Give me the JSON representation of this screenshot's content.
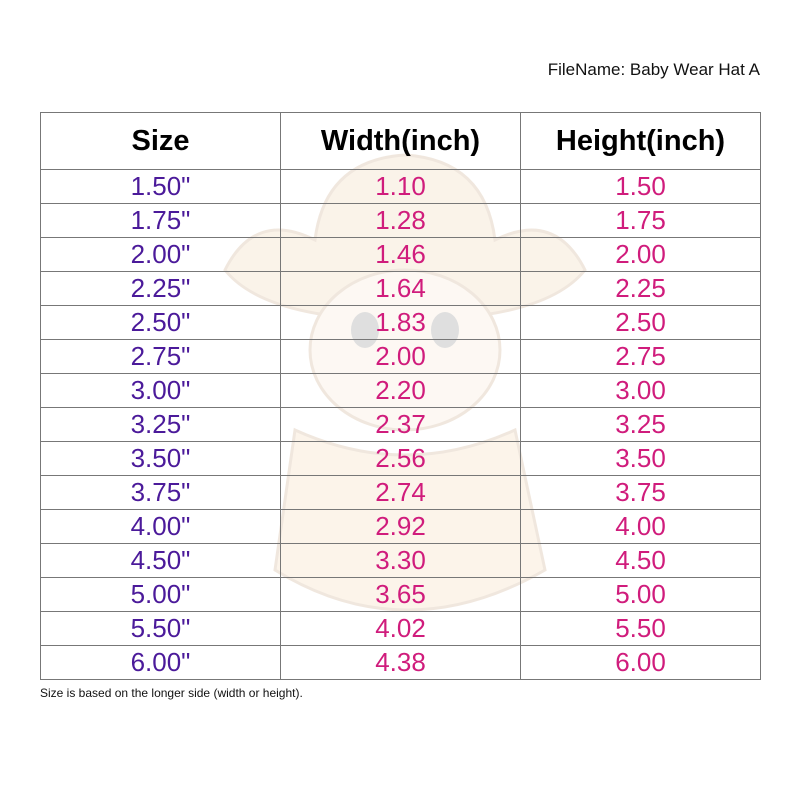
{
  "filename": "FileName: Baby Wear Hat A",
  "colors": {
    "size": "#4b1a9a",
    "values": "#d01c7c"
  },
  "watermark_icon": "baby-cowboy-hat-icon",
  "table": {
    "headers": [
      "Size",
      "Width(inch)",
      "Height(inch)"
    ],
    "rows": [
      [
        "1.50\"",
        "1.10",
        "1.50"
      ],
      [
        "1.75\"",
        "1.28",
        "1.75"
      ],
      [
        "2.00\"",
        "1.46",
        "2.00"
      ],
      [
        "2.25\"",
        "1.64",
        "2.25"
      ],
      [
        "2.50\"",
        "1.83",
        "2.50"
      ],
      [
        "2.75\"",
        "2.00",
        "2.75"
      ],
      [
        "3.00\"",
        "2.20",
        "3.00"
      ],
      [
        "3.25\"",
        "2.37",
        "3.25"
      ],
      [
        "3.50\"",
        "2.56",
        "3.50"
      ],
      [
        "3.75\"",
        "2.74",
        "3.75"
      ],
      [
        "4.00\"",
        "2.92",
        "4.00"
      ],
      [
        "4.50\"",
        "3.30",
        "4.50"
      ],
      [
        "5.00\"",
        "3.65",
        "5.00"
      ],
      [
        "5.50\"",
        "4.02",
        "5.50"
      ],
      [
        "6.00\"",
        "4.38",
        "6.00"
      ]
    ]
  },
  "note": "Size is based on the longer side (width or height)."
}
